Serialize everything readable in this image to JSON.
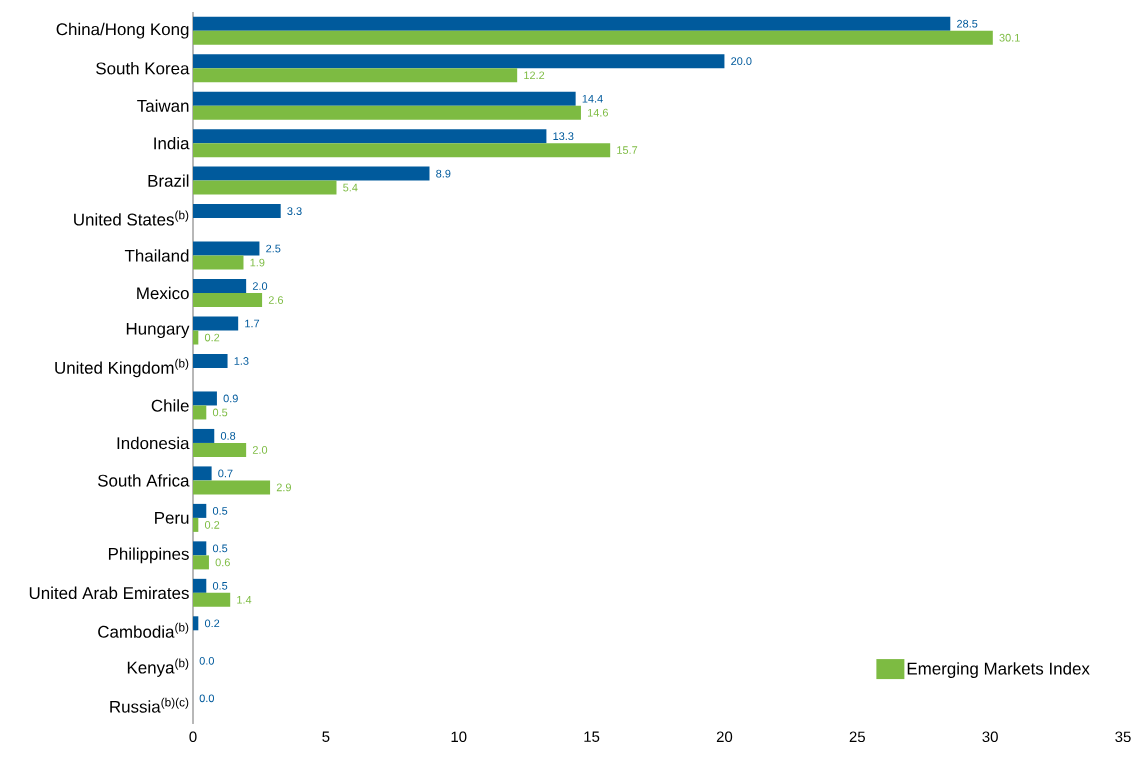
{
  "chart_data": {
    "type": "bar",
    "orientation": "horizontal",
    "categories": [
      "China/Hong Kong",
      "South Korea",
      "Taiwan",
      "India",
      "Brazil",
      "United States$^{(b)}$",
      "Thailand",
      "Mexico",
      "Hungary",
      "United Kingdom$^{(b)}$",
      "Chile",
      "Indonesia",
      "South Africa",
      "Peru",
      "Philippines",
      "United Arab Emirates",
      "Cambodia$^{(b)}$",
      "Kenya$^{(b)}$",
      "Russia$^{(b)(c)}$"
    ],
    "series": [
      {
        "color": "#005a9c",
        "values": [
          28.5,
          20.0,
          14.4,
          13.3,
          8.9,
          3.3,
          2.5,
          2.0,
          1.7,
          1.3,
          0.9,
          0.8,
          0.7,
          0.5,
          0.5,
          0.5,
          0.2,
          0.0,
          0.0
        ],
        "value_labels": [
          "28.5",
          "20.0",
          "14.4",
          "13.3",
          "8.9",
          "3.3",
          "2.5",
          "2.0",
          "1.7",
          "1.3",
          "0.9",
          "0.8",
          "0.7",
          "0.5",
          "0.5",
          "0.5",
          "0.2",
          "0.0",
          "0.0"
        ]
      },
      {
        "name": "Emerging Markets Index",
        "color": "#7dbb42",
        "values": [
          30.1,
          12.2,
          14.6,
          15.7,
          5.4,
          0,
          1.9,
          2.6,
          0.2,
          0,
          0.5,
          2.0,
          2.9,
          0.2,
          0.6,
          1.4,
          0,
          0,
          0
        ],
        "value_labels": [
          "30.1",
          "12.2",
          "14.6",
          "15.7",
          "5.4",
          null,
          "1.9",
          "2.6",
          "0.2",
          null,
          "0.5",
          "2.0",
          "2.9",
          "0.2",
          "0.6",
          "1.4",
          null,
          null,
          null
        ]
      }
    ],
    "xlim": [
      0,
      35
    ],
    "xticks": [
      0,
      5,
      10,
      15,
      20,
      25,
      30,
      35
    ],
    "legend": "bottom right"
  }
}
